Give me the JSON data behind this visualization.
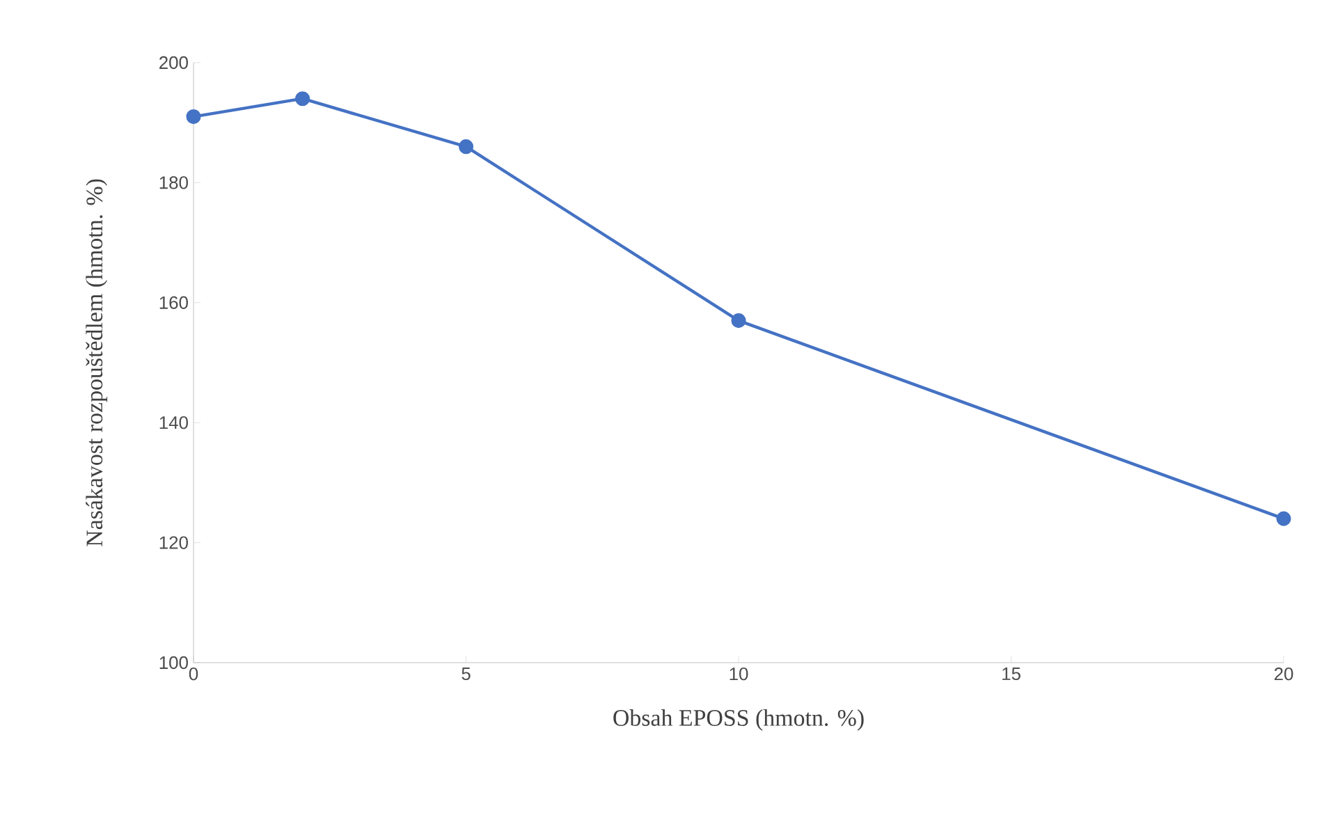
{
  "chart_data": {
    "type": "line",
    "xlabel": "Obsah EPOSS (hmotn. %)",
    "ylabel": "Nasákavost rozpouštědlem (hmotn. %)",
    "x": [
      0,
      2,
      5,
      10,
      20
    ],
    "series": [
      {
        "color": "#4472c4",
        "values": [
          191,
          194,
          186,
          157,
          124
        ]
      }
    ],
    "xlim": [
      0,
      20
    ],
    "xticks": [
      0,
      5,
      10,
      15,
      20
    ],
    "ylim": [
      100,
      200
    ],
    "yticks": [
      100,
      120,
      140,
      160,
      180,
      200
    ],
    "marker": "circle",
    "line_style": "solid",
    "grid": false
  }
}
